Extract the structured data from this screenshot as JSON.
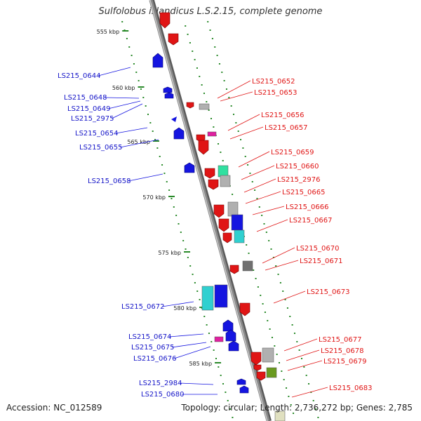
{
  "title": "Sulfolobus islandicus L.S.2.15, complete genome",
  "accession_label": "Accession: NC_012589",
  "summary_label": "Topology: circular; Length: 2,736,272 bp; Genes: 2,785",
  "colors": {
    "backbone": "#8a8a8a",
    "plus_strand": "#1515e0",
    "minus_strand": "#e01515",
    "ticks": "#2a8a2a",
    "rna_magenta": "#e020a0",
    "cyan": "#30d0d0",
    "aqua_green": "#30e0a0",
    "grey": "#b0b0b0",
    "olive": "#6a9a20"
  },
  "scale_ticks": [
    "555 kbp",
    "560 kbp",
    "565 kbp",
    "570 kbp",
    "575 kbp",
    "580 kbp",
    "585 kbp"
  ],
  "labels_left": [
    "LS215_0644",
    "LS215_0648",
    "LS215_0649",
    "LS215_2975",
    "LS215_0654",
    "LS215_0655",
    "LS215_0658",
    "LS215_0672",
    "LS215_0674",
    "LS215_0675",
    "LS215_0676",
    "LS215_2984",
    "LS215_0680"
  ],
  "labels_right": [
    "LS215_0652",
    "LS215_0653",
    "LS215_0656",
    "LS215_0657",
    "LS215_0659",
    "LS215_0660",
    "LS215_2976",
    "LS215_0665",
    "LS215_0666",
    "LS215_0667",
    "LS215_0670",
    "LS215_0671",
    "LS215_0673",
    "LS215_0677",
    "LS215_0678",
    "LS215_0679",
    "LS215_0683"
  ]
}
